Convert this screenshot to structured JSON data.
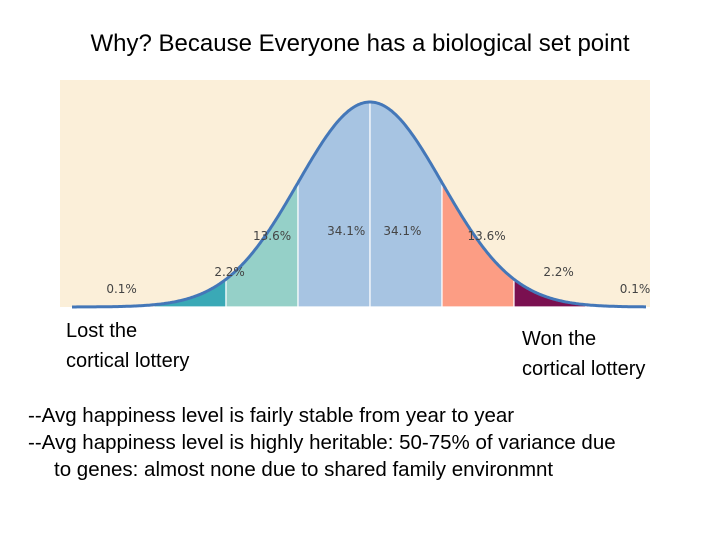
{
  "title": "Why? Because Everyone has a biological set point",
  "captions": {
    "left": [
      "Lost the",
      "cortical lottery"
    ],
    "right": [
      "Won the",
      "cortical lottery"
    ]
  },
  "bullets": [
    "--Avg happiness level is fairly stable from year to year",
    "--Avg happiness level is highly heritable: 50-75% of variance due",
    "to genes: almost none due to shared family environmnt"
  ],
  "chart_data": {
    "type": "area",
    "title": "",
    "xlabel": "",
    "ylabel": "",
    "distribution": "normal",
    "x_range_sd": [
      -3.9,
      3.9
    ],
    "segments": [
      {
        "from": -4,
        "to": -3,
        "label": "0.1%",
        "color": "#e8762b"
      },
      {
        "from": -3,
        "to": -2,
        "label": "2.2%",
        "color": "#3aa9b6"
      },
      {
        "from": -2,
        "to": -1,
        "label": "13.6%",
        "color": "#95d0c8"
      },
      {
        "from": -1,
        "to": 0,
        "label": "34.1%",
        "color": "#a7c4e2"
      },
      {
        "from": 0,
        "to": 1,
        "label": "34.1%",
        "color": "#a7c4e2"
      },
      {
        "from": 1,
        "to": 2,
        "label": "13.6%",
        "color": "#fc9d84"
      },
      {
        "from": 2,
        "to": 3,
        "label": "2.2%",
        "color": "#7a1050"
      },
      {
        "from": 3,
        "to": 4,
        "label": "0.1%",
        "color": "#7a1050"
      }
    ],
    "background": "#fbefd9",
    "curve_color": "#4477b8"
  }
}
